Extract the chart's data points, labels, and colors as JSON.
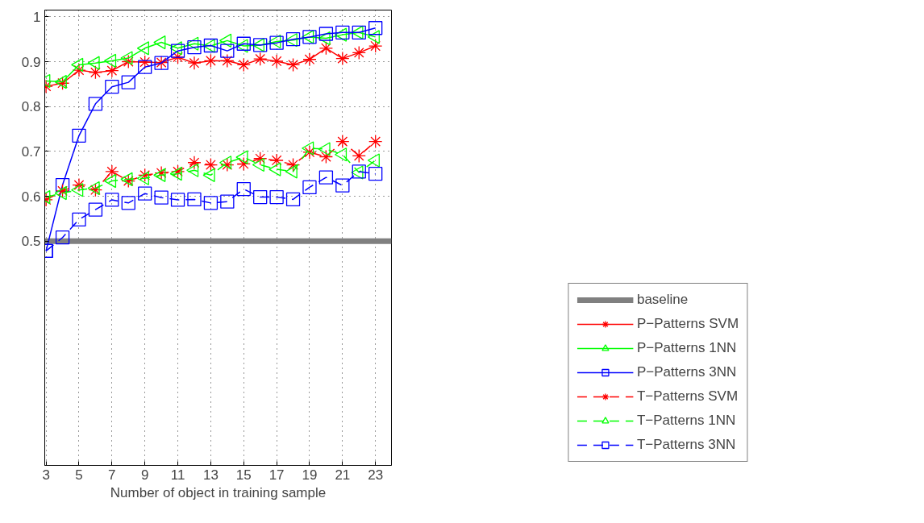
{
  "chart_data": {
    "type": "line",
    "xlabel": "Number of object in training sample",
    "x": [
      3,
      4,
      5,
      6,
      7,
      8,
      9,
      10,
      11,
      12,
      13,
      14,
      15,
      16,
      17,
      18,
      19,
      20,
      21,
      22,
      23
    ],
    "xlim": [
      2.92,
      23.97
    ],
    "xticks": [
      3,
      5,
      7,
      9,
      11,
      13,
      15,
      17,
      19,
      21,
      23
    ],
    "ylim": [
      0,
      1.015
    ],
    "yticks": [
      0.5,
      0.6,
      0.7,
      0.8,
      0.9,
      1
    ],
    "grid": true,
    "legend": "bottom right",
    "ref_lines": [
      {
        "axis": "y",
        "value": 0.5,
        "label": "baseline",
        "color": "#808080"
      }
    ],
    "series": [
      {
        "name": "P−Patterns SVM",
        "color": "#ff0000",
        "marker": "cross",
        "line_style": "solid",
        "values": [
          0.845,
          0.852,
          0.881,
          0.876,
          0.88,
          0.9,
          0.899,
          0.898,
          0.91,
          0.897,
          0.902,
          0.902,
          0.893,
          0.906,
          0.901,
          0.893,
          0.905,
          0.93,
          0.907,
          0.92,
          0.935
        ]
      },
      {
        "name": "P−Patterns 1NN",
        "color": "#00ff00",
        "marker": "triangle",
        "line_style": "solid",
        "values": [
          0.857,
          0.855,
          0.893,
          0.897,
          0.902,
          0.908,
          0.93,
          0.943,
          0.93,
          0.94,
          0.935,
          0.947,
          0.935,
          0.937,
          0.945,
          0.948,
          0.955,
          0.952,
          0.96,
          0.965,
          0.955
        ]
      },
      {
        "name": "P−Patterns 3NN",
        "color": "#0000ff",
        "marker": "square",
        "line_style": "solid",
        "values": [
          0.478,
          0.625,
          0.735,
          0.806,
          0.844,
          0.854,
          0.888,
          0.897,
          0.924,
          0.932,
          0.936,
          0.924,
          0.94,
          0.937,
          0.942,
          0.95,
          0.955,
          0.962,
          0.965,
          0.965,
          0.975
        ]
      },
      {
        "name": "T−Patterns SVM",
        "color": "#ff0000",
        "marker": "cross",
        "line_style": "dashed",
        "values": [
          0.592,
          0.612,
          0.625,
          0.614,
          0.655,
          0.634,
          0.647,
          0.652,
          0.655,
          0.675,
          0.67,
          0.67,
          0.672,
          0.684,
          0.68,
          0.67,
          0.698,
          0.688,
          0.722,
          0.69,
          0.722
        ]
      },
      {
        "name": "T−Patterns 1NN",
        "color": "#00ff00",
        "marker": "triangle",
        "line_style": "dashed",
        "values": [
          0.598,
          0.607,
          0.614,
          0.618,
          0.634,
          0.638,
          0.64,
          0.647,
          0.65,
          0.658,
          0.647,
          0.675,
          0.687,
          0.67,
          0.66,
          0.655,
          0.707,
          0.705,
          0.693,
          0.653,
          0.68
        ]
      },
      {
        "name": "T−Patterns 3NN",
        "color": "#0000ff",
        "marker": "square",
        "line_style": "dashed",
        "values": [
          0.478,
          0.508,
          0.548,
          0.57,
          0.592,
          0.585,
          0.606,
          0.597,
          0.592,
          0.593,
          0.585,
          0.588,
          0.616,
          0.598,
          0.598,
          0.593,
          0.62,
          0.642,
          0.624,
          0.655,
          0.65
        ]
      }
    ]
  }
}
